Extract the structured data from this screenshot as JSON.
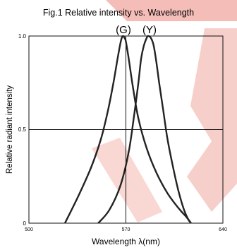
{
  "chart_data": {
    "type": "line",
    "title": "Fig.1 Relative intensity vs. Wavelength",
    "xlabel": "Wavelength λ(nm)",
    "ylabel": "Relative radiant intensity",
    "xlim": [
      500,
      640
    ],
    "ylim": [
      0,
      1.0
    ],
    "x_ticks": [
      "500",
      "570",
      "640"
    ],
    "y_ticks": [
      "0",
      "0.5",
      "1.0"
    ],
    "grid": true,
    "series": [
      {
        "name": "(G)",
        "x": [
          526,
          536,
          545,
          552,
          557,
          561,
          564,
          566,
          567,
          568,
          569,
          570,
          572,
          575,
          579,
          585,
          592,
          600,
          608,
          614,
          617
        ],
        "y": [
          0.0,
          0.15,
          0.3,
          0.45,
          0.6,
          0.75,
          0.88,
          0.96,
          0.99,
          1.0,
          0.99,
          0.97,
          0.88,
          0.73,
          0.56,
          0.4,
          0.27,
          0.16,
          0.08,
          0.03,
          0.0
        ]
      },
      {
        "name": "(Y)",
        "x": [
          550,
          558,
          566,
          572,
          576,
          579,
          581,
          583,
          585,
          586,
          588,
          590,
          592,
          594,
          597,
          600,
          604,
          608,
          612,
          615,
          617
        ],
        "y": [
          0.0,
          0.07,
          0.2,
          0.38,
          0.58,
          0.75,
          0.88,
          0.95,
          0.99,
          1.0,
          0.99,
          0.95,
          0.86,
          0.75,
          0.6,
          0.45,
          0.3,
          0.17,
          0.07,
          0.02,
          0.0
        ]
      }
    ]
  },
  "colors": {
    "curve": "#222222",
    "grid": "#111111",
    "watermark": "#e0463a"
  }
}
